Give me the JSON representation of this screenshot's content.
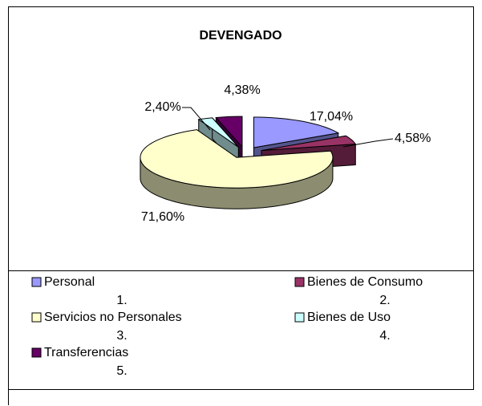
{
  "chart_data": {
    "type": "pie",
    "title": "DEVENGADO",
    "categories": [
      "Personal",
      "Bienes de Consumo",
      "Servicios no Personales",
      "Bienes de Uso",
      "Transferencias"
    ],
    "category_codes": [
      "1.",
      "2.",
      "3.",
      "4.",
      "5."
    ],
    "values": [
      17.04,
      4.58,
      71.6,
      2.4,
      4.38
    ],
    "value_labels": [
      "17,04%",
      "4,58%",
      "71,60%",
      "2,40%",
      "4,38%"
    ],
    "colors": [
      "#9999ff",
      "#993366",
      "#ffffcc",
      "#ccffff",
      "#660066"
    ]
  }
}
